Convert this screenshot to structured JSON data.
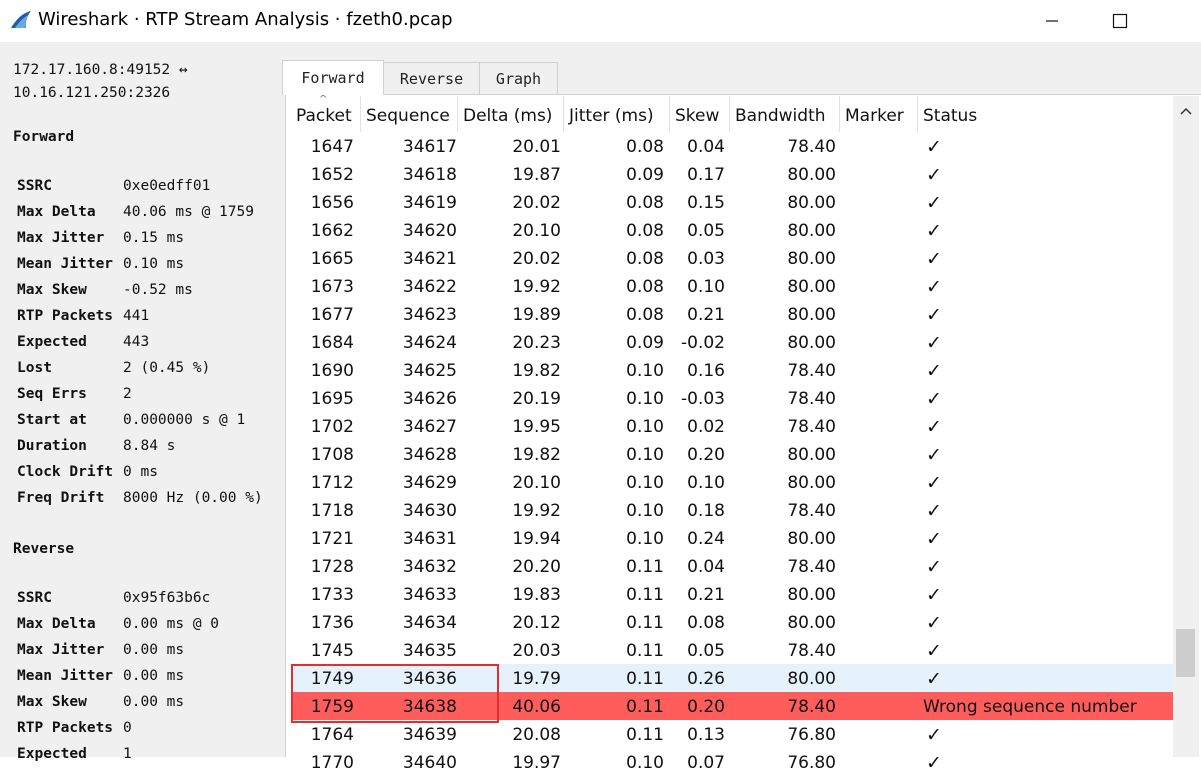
{
  "window": {
    "title": "Wireshark · RTP Stream Analysis · fzeth0.pcap"
  },
  "left": {
    "endpoint_line1": "172.17.160.8:49152 ↔",
    "endpoint_line2": "10.16.121.250:2326",
    "forward": {
      "heading": "Forward",
      "stats": [
        {
          "label": "SSRC",
          "value": "0xe0edff01"
        },
        {
          "label": "Max Delta",
          "value": "40.06 ms @ 1759"
        },
        {
          "label": "Max Jitter",
          "value": "0.15 ms"
        },
        {
          "label": "Mean Jitter",
          "value": "0.10 ms"
        },
        {
          "label": "Max Skew",
          "value": "-0.52 ms"
        },
        {
          "label": "RTP Packets",
          "value": "441"
        },
        {
          "label": "Expected",
          "value": "443"
        },
        {
          "label": "Lost",
          "value": "2 (0.45 %)"
        },
        {
          "label": "Seq Errs",
          "value": "2"
        },
        {
          "label": "Start at",
          "value": "0.000000 s @ 1"
        },
        {
          "label": "Duration",
          "value": "8.84 s"
        },
        {
          "label": "Clock Drift",
          "value": "0 ms"
        },
        {
          "label": "Freq Drift",
          "value": "8000 Hz (0.00 %)"
        }
      ]
    },
    "reverse": {
      "heading": "Reverse",
      "stats": [
        {
          "label": "SSRC",
          "value": "0x95f63b6c"
        },
        {
          "label": "Max Delta",
          "value": "0.00 ms @ 0"
        },
        {
          "label": "Max Jitter",
          "value": "0.00 ms"
        },
        {
          "label": "Mean Jitter",
          "value": "0.00 ms"
        },
        {
          "label": "Max Skew",
          "value": "0.00 ms"
        },
        {
          "label": "RTP Packets",
          "value": "0"
        },
        {
          "label": "Expected",
          "value": "1"
        }
      ]
    }
  },
  "tabs": [
    {
      "label": "Forward",
      "active": true
    },
    {
      "label": "Reverse",
      "active": false
    },
    {
      "label": "Graph",
      "active": false
    }
  ],
  "table": {
    "columns": [
      "Packet",
      "Sequence",
      "Delta (ms)",
      "Jitter (ms)",
      "Skew",
      "Bandwidth",
      "Marker",
      "Status"
    ],
    "sort_indicator": "^",
    "rows": [
      [
        "1647",
        "34617",
        "20.01",
        "0.08",
        "0.04",
        "78.40",
        "",
        "✓"
      ],
      [
        "1652",
        "34618",
        "19.87",
        "0.09",
        "0.17",
        "80.00",
        "",
        "✓"
      ],
      [
        "1656",
        "34619",
        "20.02",
        "0.08",
        "0.15",
        "80.00",
        "",
        "✓"
      ],
      [
        "1662",
        "34620",
        "20.10",
        "0.08",
        "0.05",
        "80.00",
        "",
        "✓"
      ],
      [
        "1665",
        "34621",
        "20.02",
        "0.08",
        "0.03",
        "80.00",
        "",
        "✓"
      ],
      [
        "1673",
        "34622",
        "19.92",
        "0.08",
        "0.10",
        "80.00",
        "",
        "✓"
      ],
      [
        "1677",
        "34623",
        "19.89",
        "0.08",
        "0.21",
        "80.00",
        "",
        "✓"
      ],
      [
        "1684",
        "34624",
        "20.23",
        "0.09",
        "-0.02",
        "80.00",
        "",
        "✓"
      ],
      [
        "1690",
        "34625",
        "19.82",
        "0.10",
        "0.16",
        "78.40",
        "",
        "✓"
      ],
      [
        "1695",
        "34626",
        "20.19",
        "0.10",
        "-0.03",
        "78.40",
        "",
        "✓"
      ],
      [
        "1702",
        "34627",
        "19.95",
        "0.10",
        "0.02",
        "78.40",
        "",
        "✓"
      ],
      [
        "1708",
        "34628",
        "19.82",
        "0.10",
        "0.20",
        "80.00",
        "",
        "✓"
      ],
      [
        "1712",
        "34629",
        "20.10",
        "0.10",
        "0.10",
        "80.00",
        "",
        "✓"
      ],
      [
        "1718",
        "34630",
        "19.92",
        "0.10",
        "0.18",
        "78.40",
        "",
        "✓"
      ],
      [
        "1721",
        "34631",
        "19.94",
        "0.10",
        "0.24",
        "80.00",
        "",
        "✓"
      ],
      [
        "1728",
        "34632",
        "20.20",
        "0.11",
        "0.04",
        "78.40",
        "",
        "✓"
      ],
      [
        "1733",
        "34633",
        "19.83",
        "0.11",
        "0.21",
        "80.00",
        "",
        "✓"
      ],
      [
        "1736",
        "34634",
        "20.12",
        "0.11",
        "0.08",
        "80.00",
        "",
        "✓"
      ],
      [
        "1745",
        "34635",
        "20.03",
        "0.11",
        "0.05",
        "78.40",
        "",
        "✓"
      ],
      [
        "1749",
        "34636",
        "19.79",
        "0.11",
        "0.26",
        "80.00",
        "",
        "✓"
      ],
      [
        "1759",
        "34638",
        "40.06",
        "0.11",
        "0.20",
        "78.40",
        "",
        "Wrong sequence number"
      ],
      [
        "1764",
        "34639",
        "20.08",
        "0.11",
        "0.13",
        "76.80",
        "",
        "✓"
      ],
      [
        "1770",
        "34640",
        "19.97",
        "0.10",
        "0.07",
        "76.80",
        "",
        "✓"
      ]
    ],
    "selected_row": 19,
    "error_row": 20,
    "colors": {
      "error_bg": "#ff5c5c",
      "selected_bg": "#e6f2fb",
      "annotation_box": "#e03030"
    }
  }
}
